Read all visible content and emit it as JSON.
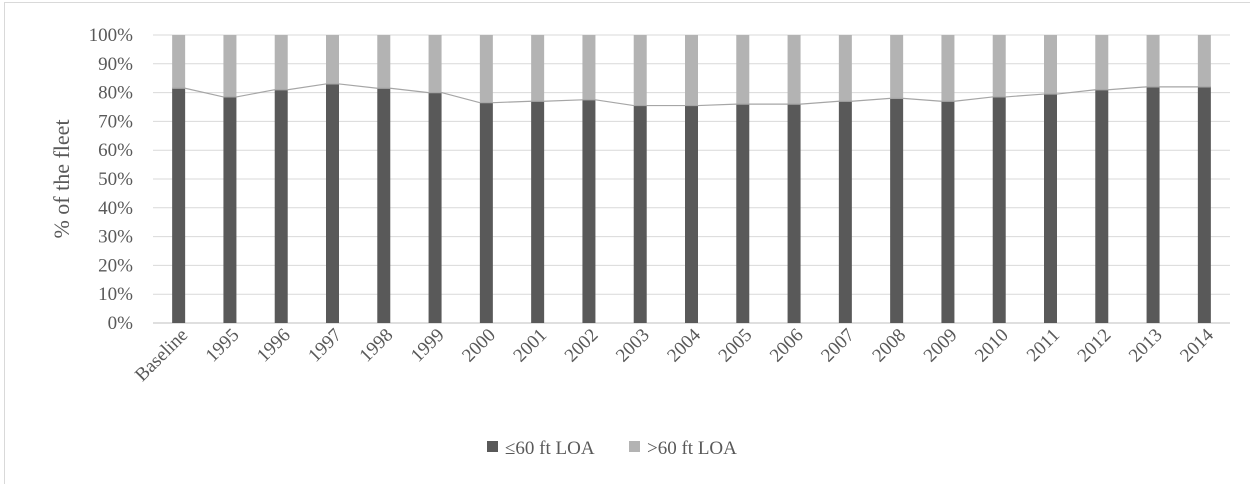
{
  "chart_data": {
    "type": "bar",
    "stacked": true,
    "normalized": true,
    "categories": [
      "Baseline",
      "1995",
      "1996",
      "1997",
      "1998",
      "1999",
      "2000",
      "2001",
      "2002",
      "2003",
      "2004",
      "2005",
      "2006",
      "2007",
      "2008",
      "2009",
      "2010",
      "2011",
      "2012",
      "2013",
      "2014"
    ],
    "series": [
      {
        "name": "≤60 ft LOA",
        "color": "#595959",
        "values": [
          81.5,
          78.5,
          81.0,
          83.0,
          81.5,
          80.0,
          76.5,
          77.0,
          77.5,
          75.5,
          75.5,
          76.0,
          76.0,
          77.0,
          78.0,
          77.0,
          78.5,
          79.5,
          81.0,
          82.0,
          82.0
        ]
      },
      {
        "name": ">60 ft LOA",
        "color": "#b3b3b3",
        "values": [
          18.5,
          21.5,
          19.0,
          17.0,
          18.5,
          20.0,
          23.5,
          23.0,
          22.5,
          24.5,
          24.5,
          24.0,
          24.0,
          23.0,
          22.0,
          23.0,
          21.5,
          20.5,
          19.0,
          18.0,
          18.0
        ]
      }
    ],
    "ylabel": "% of the fleet",
    "xlabel": "",
    "ylim": [
      0,
      100
    ],
    "yticks": [
      "0%",
      "10%",
      "20%",
      "30%",
      "40%",
      "50%",
      "60%",
      "70%",
      "80%",
      "90%",
      "100%"
    ],
    "grid": true,
    "legend_position": "bottom"
  }
}
